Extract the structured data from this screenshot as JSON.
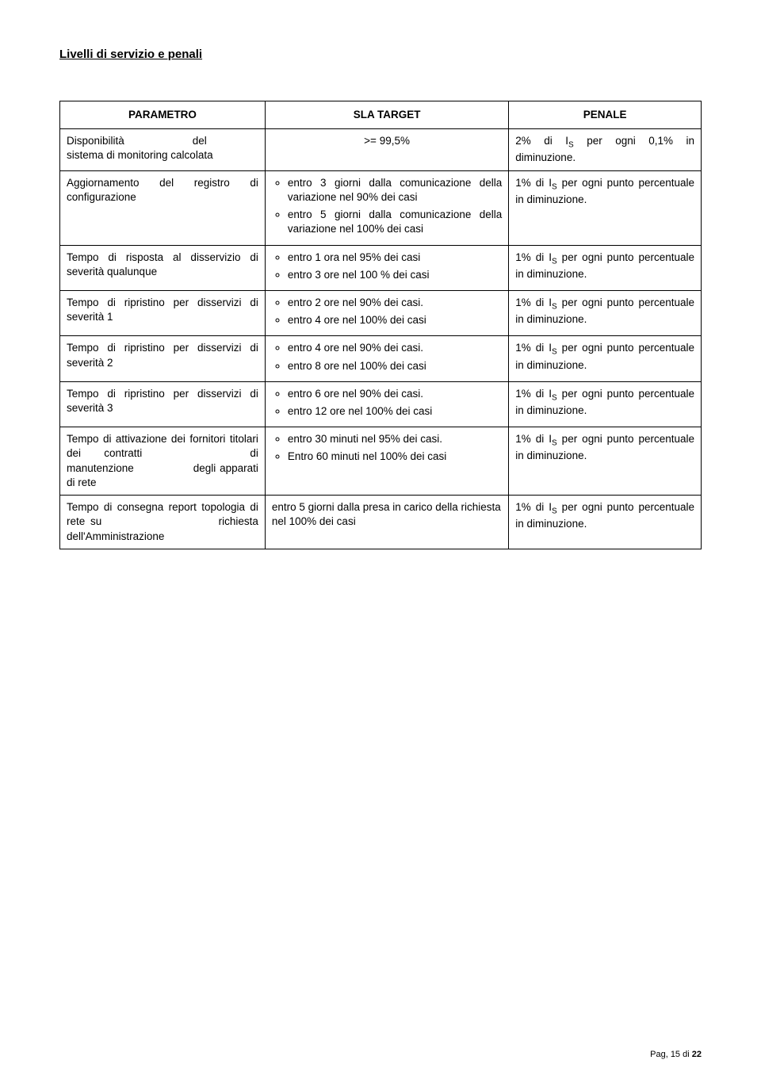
{
  "title": "Livelli di servizio e penali",
  "headers": {
    "param": "PARAMETRO",
    "sla": "SLA TARGET",
    "penale": "PENALE"
  },
  "rows": [
    {
      "param_html": "<span class='label'>Disponibilità</span> del<br>sistema di monitoring calcolata",
      "sla_center": ">= 99,5%",
      "penale": "2% di I_S per ogni 0,1% in diminuzione."
    },
    {
      "param": "Aggiornamento del registro di configurazione",
      "sla_items": [
        "entro 3 giorni dalla comunicazione della variazione nel 90% dei casi",
        "entro 5 giorni dalla comunicazione della variazione nel 100% dei casi"
      ],
      "penale": "1% di I_S per ogni punto percentuale in diminuzione."
    },
    {
      "param": "Tempo di risposta al disservizio di severità qualunque",
      "sla_items": [
        "entro 1 ora nel 95% dei casi",
        "entro 3 ore  nel 100 % dei casi"
      ],
      "penale": "1% di I_S per ogni punto percentuale in diminuzione."
    },
    {
      "param": "Tempo di ripristino per disservizi di severità 1",
      "sla_items": [
        "entro 2 ore nel 90% dei casi.",
        "entro 4 ore nel 100% dei casi"
      ],
      "penale": "1% di I_S per ogni punto percentuale in diminuzione."
    },
    {
      "param": "Tempo di ripristino per disservizi di severità 2",
      "sla_items": [
        "entro 4 ore nel 90% dei casi.",
        "entro 8 ore nel 100% dei casi"
      ],
      "penale": "1% di I_S per ogni punto percentuale in diminuzione."
    },
    {
      "param": "Tempo di ripristino per disservizi di severità 3",
      "sla_items": [
        "entro 6 ore nel 90% dei casi.",
        "entro 12 ore nel 100% dei casi"
      ],
      "penale": "1% di I_S per ogni punto percentuale in diminuzione."
    },
    {
      "param": "Tempo di attivazione dei fornitori titolari dei contratti di manutenzione degli apparati di rete",
      "param_html": "Tempo di attivazione dei fornitori titolari dei <span class='label'>contratti</span> di <span class='label'>manutenzione</span> degli apparati di rete",
      "sla_items": [
        "entro 30 minuti nel 95% dei casi.",
        "Entro 60 minuti nel 100% dei casi"
      ],
      "penale": "1% di I_S per ogni punto percentuale in diminuzione."
    },
    {
      "param": "Tempo di consegna report topologia di rete su richiesta dell'Amministrazione",
      "param_html": "Tempo di consegna report topologia di rete <span class='label'>su</span> richiesta dell'Amministrazione",
      "sla_text": "entro 5 giorni dalla presa in carico della richiesta nel 100% dei casi",
      "penale": "1% di I_S per ogni punto percentuale in diminuzione."
    }
  ],
  "footer": {
    "prefix": "Pag, ",
    "current": 15,
    "sep": " di ",
    "total": 22
  }
}
